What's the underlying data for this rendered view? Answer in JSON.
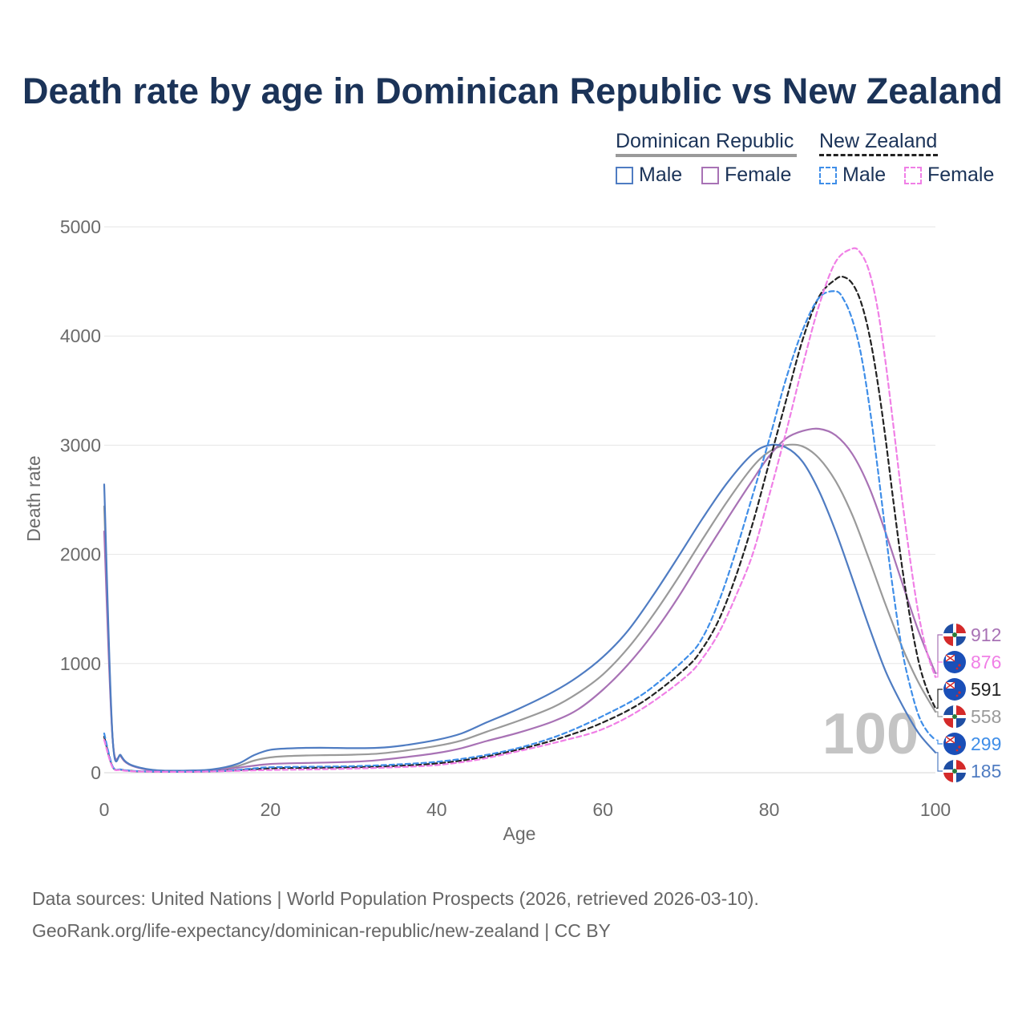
{
  "title": "Death rate by age in Dominican Republic vs New Zealand",
  "legend": {
    "groups": [
      {
        "name": "Dominican Republic",
        "items": [
          {
            "label": "Male"
          },
          {
            "label": "Female"
          }
        ]
      },
      {
        "name": "New Zealand",
        "items": [
          {
            "label": "Male"
          },
          {
            "label": "Female"
          }
        ]
      }
    ]
  },
  "colors": {
    "dr_male": "#4f7cc2",
    "dr_female": "#a872b5",
    "dr_total": "#9a9a9a",
    "nz_male": "#3f8ee8",
    "nz_female": "#f07fe6",
    "nz_total": "#222222",
    "axis_text": "#6b6b6b",
    "grid": "#e6e6e6",
    "title": "#1b3358"
  },
  "chart_data": {
    "type": "line",
    "xlabel": "Age",
    "ylabel": "Death rate",
    "xlim": [
      0,
      100
    ],
    "ylim": [
      0,
      5000
    ],
    "xticks": [
      0,
      20,
      40,
      60,
      80,
      100
    ],
    "yticks": [
      0,
      1000,
      2000,
      3000,
      4000,
      5000
    ],
    "grid": true,
    "age_marker": "100",
    "series": [
      {
        "name": "Dominican Republic Male",
        "key": "dr_male",
        "dash": "solid",
        "points": [
          [
            0,
            2640
          ],
          [
            1,
            330
          ],
          [
            2,
            160
          ],
          [
            3,
            80
          ],
          [
            5,
            35
          ],
          [
            7,
            20
          ],
          [
            10,
            20
          ],
          [
            13,
            30
          ],
          [
            16,
            80
          ],
          [
            18,
            160
          ],
          [
            20,
            210
          ],
          [
            23,
            225
          ],
          [
            26,
            228
          ],
          [
            30,
            225
          ],
          [
            33,
            228
          ],
          [
            36,
            250
          ],
          [
            40,
            300
          ],
          [
            43,
            360
          ],
          [
            46,
            460
          ],
          [
            50,
            590
          ],
          [
            54,
            740
          ],
          [
            57,
            880
          ],
          [
            60,
            1060
          ],
          [
            63,
            1300
          ],
          [
            66,
            1620
          ],
          [
            69,
            1970
          ],
          [
            72,
            2330
          ],
          [
            75,
            2660
          ],
          [
            78,
            2920
          ],
          [
            80,
            3000
          ],
          [
            82,
            2980
          ],
          [
            84,
            2850
          ],
          [
            86,
            2580
          ],
          [
            88,
            2210
          ],
          [
            90,
            1780
          ],
          [
            92,
            1340
          ],
          [
            94,
            930
          ],
          [
            96,
            620
          ],
          [
            98,
            360
          ],
          [
            100,
            185
          ]
        ]
      },
      {
        "name": "Dominican Republic Female",
        "key": "dr_female",
        "dash": "solid",
        "points": [
          [
            0,
            2210
          ],
          [
            1,
            320
          ],
          [
            2,
            150
          ],
          [
            3,
            75
          ],
          [
            5,
            30
          ],
          [
            7,
            15
          ],
          [
            10,
            15
          ],
          [
            13,
            20
          ],
          [
            16,
            45
          ],
          [
            20,
            80
          ],
          [
            25,
            90
          ],
          [
            30,
            100
          ],
          [
            33,
            115
          ],
          [
            36,
            140
          ],
          [
            40,
            180
          ],
          [
            43,
            225
          ],
          [
            46,
            290
          ],
          [
            50,
            370
          ],
          [
            54,
            470
          ],
          [
            57,
            580
          ],
          [
            60,
            760
          ],
          [
            63,
            990
          ],
          [
            66,
            1270
          ],
          [
            69,
            1600
          ],
          [
            72,
            1970
          ],
          [
            75,
            2330
          ],
          [
            78,
            2680
          ],
          [
            80,
            2900
          ],
          [
            82,
            3060
          ],
          [
            84,
            3130
          ],
          [
            86,
            3150
          ],
          [
            88,
            3090
          ],
          [
            90,
            2920
          ],
          [
            92,
            2620
          ],
          [
            94,
            2200
          ],
          [
            96,
            1740
          ],
          [
            98,
            1290
          ],
          [
            100,
            912
          ]
        ]
      },
      {
        "name": "Dominican Republic Total",
        "key": "dr_total",
        "dash": "solid",
        "points": [
          [
            0,
            2440
          ],
          [
            1,
            325
          ],
          [
            2,
            155
          ],
          [
            3,
            78
          ],
          [
            5,
            32
          ],
          [
            7,
            18
          ],
          [
            10,
            18
          ],
          [
            13,
            25
          ],
          [
            16,
            60
          ],
          [
            18,
            110
          ],
          [
            20,
            140
          ],
          [
            23,
            155
          ],
          [
            26,
            160
          ],
          [
            30,
            165
          ],
          [
            33,
            175
          ],
          [
            36,
            200
          ],
          [
            40,
            245
          ],
          [
            43,
            295
          ],
          [
            46,
            375
          ],
          [
            50,
            480
          ],
          [
            54,
            600
          ],
          [
            57,
            730
          ],
          [
            60,
            900
          ],
          [
            63,
            1140
          ],
          [
            66,
            1440
          ],
          [
            69,
            1780
          ],
          [
            72,
            2140
          ],
          [
            75,
            2490
          ],
          [
            78,
            2800
          ],
          [
            80,
            2940
          ],
          [
            82,
            3000
          ],
          [
            84,
            2990
          ],
          [
            86,
            2880
          ],
          [
            88,
            2670
          ],
          [
            90,
            2360
          ],
          [
            92,
            1960
          ],
          [
            94,
            1540
          ],
          [
            96,
            1150
          ],
          [
            98,
            820
          ],
          [
            100,
            558
          ]
        ]
      },
      {
        "name": "New Zealand Male",
        "key": "nz_male",
        "dash": "dashed",
        "points": [
          [
            0,
            360
          ],
          [
            1,
            60
          ],
          [
            2,
            30
          ],
          [
            3,
            20
          ],
          [
            5,
            12
          ],
          [
            10,
            10
          ],
          [
            15,
            20
          ],
          [
            18,
            40
          ],
          [
            20,
            50
          ],
          [
            25,
            55
          ],
          [
            30,
            60
          ],
          [
            35,
            75
          ],
          [
            40,
            100
          ],
          [
            45,
            150
          ],
          [
            50,
            230
          ],
          [
            55,
            350
          ],
          [
            60,
            520
          ],
          [
            65,
            730
          ],
          [
            70,
            1050
          ],
          [
            72,
            1240
          ],
          [
            74,
            1580
          ],
          [
            76,
            2030
          ],
          [
            78,
            2540
          ],
          [
            80,
            3050
          ],
          [
            82,
            3600
          ],
          [
            84,
            4050
          ],
          [
            86,
            4350
          ],
          [
            88,
            4410
          ],
          [
            89,
            4330
          ],
          [
            90,
            4150
          ],
          [
            91,
            3850
          ],
          [
            92,
            3390
          ],
          [
            93,
            2820
          ],
          [
            94,
            2200
          ],
          [
            95,
            1620
          ],
          [
            96,
            1120
          ],
          [
            97,
            780
          ],
          [
            98,
            520
          ],
          [
            99,
            380
          ],
          [
            100,
            299
          ]
        ]
      },
      {
        "name": "New Zealand Female",
        "key": "nz_female",
        "dash": "dashed",
        "points": [
          [
            0,
            300
          ],
          [
            1,
            50
          ],
          [
            2,
            25
          ],
          [
            3,
            15
          ],
          [
            5,
            10
          ],
          [
            10,
            8
          ],
          [
            15,
            15
          ],
          [
            20,
            25
          ],
          [
            25,
            30
          ],
          [
            30,
            38
          ],
          [
            35,
            50
          ],
          [
            40,
            70
          ],
          [
            45,
            120
          ],
          [
            50,
            200
          ],
          [
            55,
            290
          ],
          [
            60,
            400
          ],
          [
            65,
            600
          ],
          [
            70,
            880
          ],
          [
            72,
            1050
          ],
          [
            74,
            1290
          ],
          [
            76,
            1620
          ],
          [
            78,
            2000
          ],
          [
            80,
            2540
          ],
          [
            82,
            3110
          ],
          [
            84,
            3720
          ],
          [
            86,
            4280
          ],
          [
            88,
            4680
          ],
          [
            90,
            4800
          ],
          [
            91,
            4760
          ],
          [
            92,
            4600
          ],
          [
            93,
            4270
          ],
          [
            94,
            3760
          ],
          [
            95,
            3140
          ],
          [
            96,
            2500
          ],
          [
            97,
            1930
          ],
          [
            98,
            1440
          ],
          [
            99,
            1100
          ],
          [
            100,
            876
          ]
        ]
      },
      {
        "name": "New Zealand Total",
        "key": "nz_total",
        "dash": "dashed",
        "points": [
          [
            0,
            330
          ],
          [
            1,
            55
          ],
          [
            2,
            28
          ],
          [
            3,
            18
          ],
          [
            5,
            11
          ],
          [
            10,
            9
          ],
          [
            15,
            18
          ],
          [
            20,
            40
          ],
          [
            25,
            45
          ],
          [
            30,
            50
          ],
          [
            35,
            62
          ],
          [
            40,
            85
          ],
          [
            45,
            135
          ],
          [
            50,
            215
          ],
          [
            55,
            320
          ],
          [
            60,
            460
          ],
          [
            65,
            660
          ],
          [
            70,
            960
          ],
          [
            72,
            1140
          ],
          [
            74,
            1410
          ],
          [
            76,
            1800
          ],
          [
            78,
            2280
          ],
          [
            80,
            2840
          ],
          [
            82,
            3400
          ],
          [
            84,
            3960
          ],
          [
            86,
            4360
          ],
          [
            88,
            4520
          ],
          [
            89,
            4540
          ],
          [
            90,
            4480
          ],
          [
            91,
            4320
          ],
          [
            92,
            4030
          ],
          [
            93,
            3600
          ],
          [
            94,
            3060
          ],
          [
            95,
            2450
          ],
          [
            96,
            1880
          ],
          [
            97,
            1400
          ],
          [
            98,
            1010
          ],
          [
            99,
            760
          ],
          [
            100,
            591
          ]
        ]
      }
    ],
    "end_labels": [
      {
        "value": "912",
        "key": "dr_female",
        "flag": "dr"
      },
      {
        "value": "876",
        "key": "nz_female",
        "flag": "nz"
      },
      {
        "value": "591",
        "key": "nz_total",
        "flag": "nz"
      },
      {
        "value": "558",
        "key": "dr_total",
        "flag": "dr"
      },
      {
        "value": "299",
        "key": "nz_male",
        "flag": "nz"
      },
      {
        "value": "185",
        "key": "dr_male",
        "flag": "dr"
      }
    ]
  },
  "footer": {
    "sources": "Data sources: United Nations | World Population Prospects (2026, retrieved 2026-03-10).",
    "credit": "GeoRank.org/life-expectancy/dominican-republic/new-zealand | CC BY"
  }
}
